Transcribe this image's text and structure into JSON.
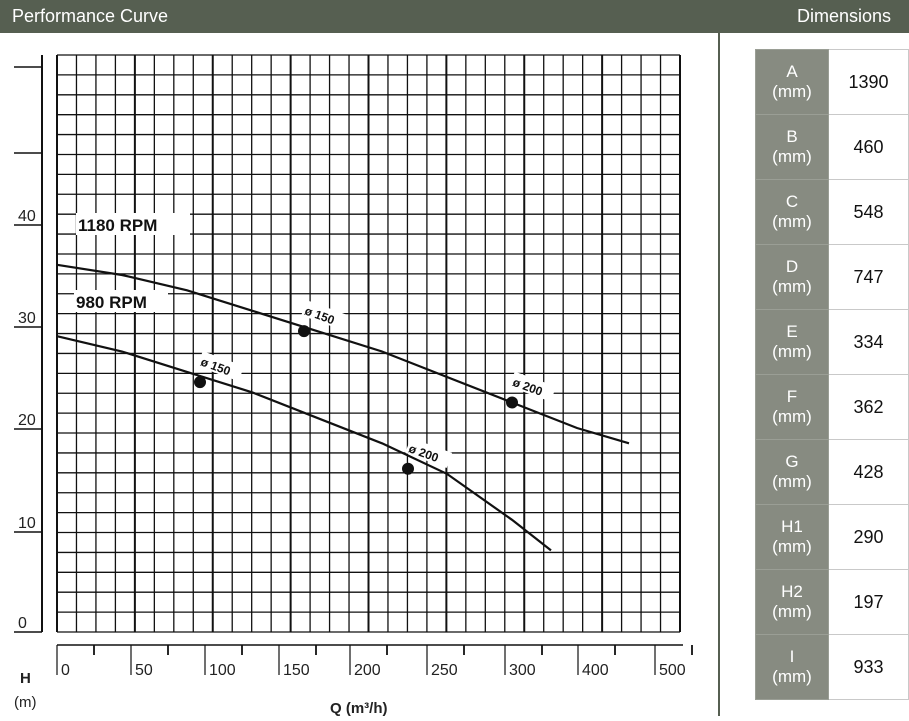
{
  "header": {
    "left_title": "Performance Curve",
    "right_title": "Dimensions"
  },
  "chart_data": {
    "type": "line",
    "title": "Performance Curve",
    "xlabel": "Q (m³/h)",
    "ylabel": "H (m)",
    "ylabel_main": "H",
    "ylabel_unit": "(m)",
    "x_ticks": [
      "0",
      "50",
      "100",
      "150",
      "200",
      "250",
      "300",
      "400",
      "500"
    ],
    "y_ticks": [
      "0",
      "10",
      "20",
      "30",
      "40"
    ],
    "ylim": [
      0,
      50
    ],
    "grid": true,
    "series": [
      {
        "name": "1180 RPM",
        "label": "1180 RPM",
        "x": [
          0,
          50,
          100,
          150,
          200,
          250,
          300,
          350,
          400,
          440
        ],
        "y": [
          36,
          35,
          33.5,
          31.5,
          29.5,
          27.5,
          25,
          22.5,
          20,
          18.5
        ],
        "markers": [
          {
            "label": "ø 150",
            "x": 190,
            "y": 29.5
          },
          {
            "label": "ø 200",
            "x": 350,
            "y": 22.5
          }
        ]
      },
      {
        "name": "980 RPM",
        "label": "980 RPM",
        "x": [
          0,
          50,
          100,
          150,
          200,
          250,
          300,
          350,
          380
        ],
        "y": [
          29,
          27.5,
          25.5,
          23.5,
          21,
          18.5,
          15.5,
          11,
          8
        ],
        "markers": [
          {
            "label": "ø 150",
            "x": 110,
            "y": 24.5
          },
          {
            "label": "ø 200",
            "x": 270,
            "y": 16
          }
        ]
      }
    ]
  },
  "dimensions": {
    "unit": "(mm)",
    "rows": [
      {
        "key": "A",
        "value": "1390"
      },
      {
        "key": "B",
        "value": "460"
      },
      {
        "key": "C",
        "value": "548"
      },
      {
        "key": "D",
        "value": "747"
      },
      {
        "key": "E",
        "value": "334"
      },
      {
        "key": "F",
        "value": "362"
      },
      {
        "key": "G",
        "value": "428"
      },
      {
        "key": "H1",
        "value": "290"
      },
      {
        "key": "H2",
        "value": "197"
      },
      {
        "key": "I",
        "value": "933"
      }
    ]
  }
}
